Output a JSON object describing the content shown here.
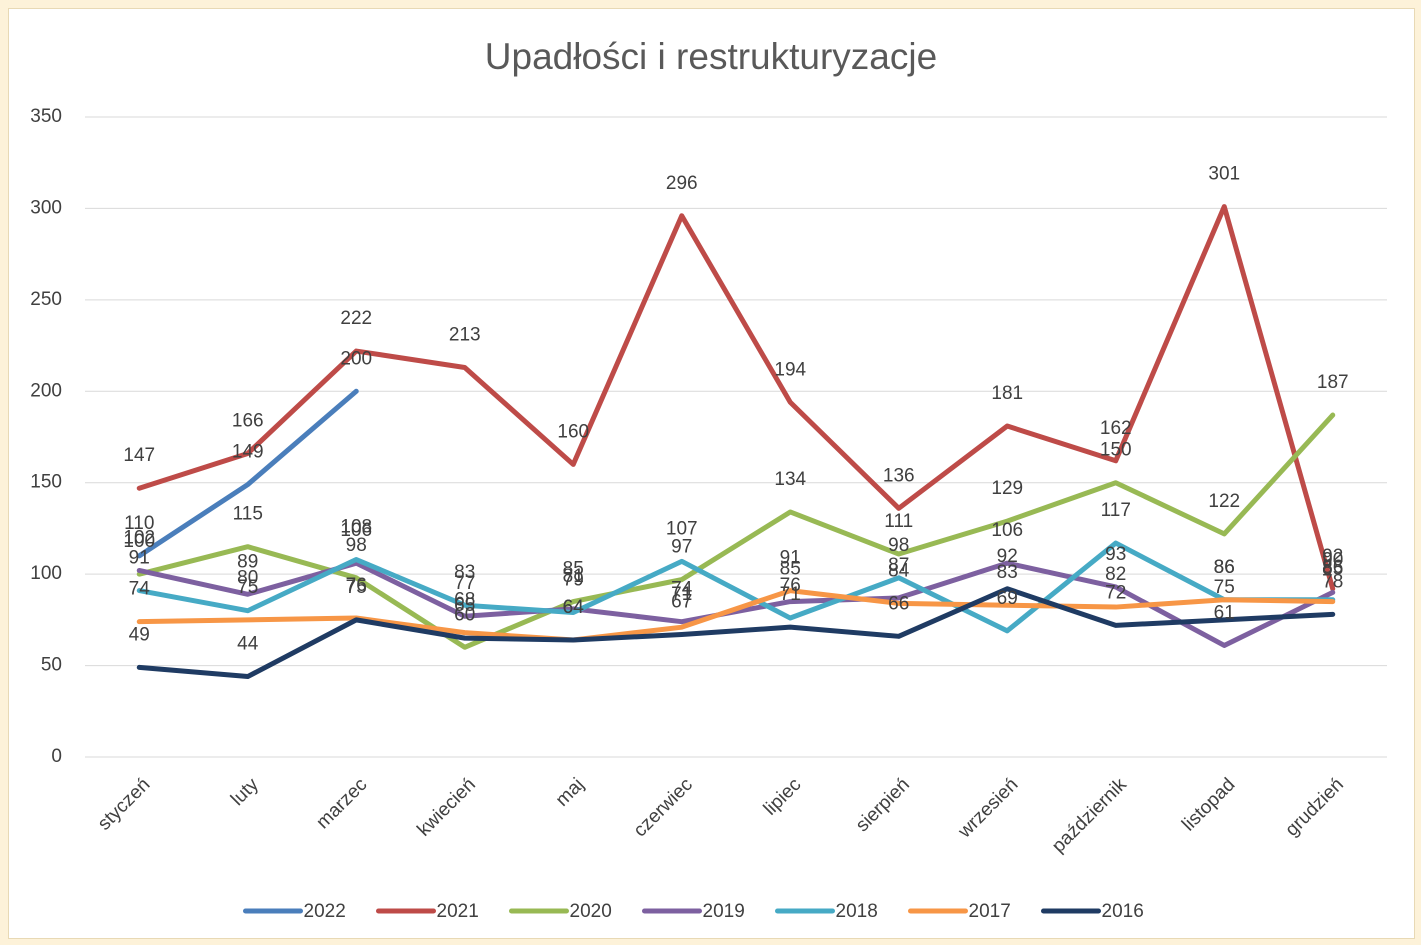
{
  "chart_data": {
    "type": "line",
    "title": "Upadłości i restrukturyzacje",
    "categories": [
      "styczeń",
      "luty",
      "marzec",
      "kwiecień",
      "maj",
      "czerwiec",
      "lipiec",
      "sierpień",
      "wrzesień",
      "październik",
      "listopad",
      "grudzień"
    ],
    "series": [
      {
        "name": "2022",
        "color": "#4a7ebb",
        "values": [
          110,
          149,
          200,
          null,
          null,
          null,
          null,
          null,
          null,
          null,
          null,
          null
        ]
      },
      {
        "name": "2021",
        "color": "#be4b48",
        "values": [
          147,
          166,
          222,
          213,
          160,
          296,
          194,
          136,
          181,
          162,
          301,
          92
        ]
      },
      {
        "name": "2020",
        "color": "#98b954",
        "values": [
          100,
          115,
          98,
          60,
          85,
          97,
          134,
          111,
          129,
          150,
          122,
          187
        ]
      },
      {
        "name": "2019",
        "color": "#7d60a0",
        "values": [
          102,
          89,
          106,
          77,
          81,
          74,
          85,
          87,
          106,
          93,
          61,
          90
        ]
      },
      {
        "name": "2018",
        "color": "#46aac5",
        "values": [
          91,
          80,
          108,
          83,
          79,
          107,
          76,
          98,
          69,
          117,
          86,
          86
        ]
      },
      {
        "name": "2017",
        "color": "#f79646",
        "values": [
          74,
          75,
          76,
          68,
          64,
          71,
          91,
          84,
          83,
          82,
          86,
          85
        ]
      },
      {
        "name": "2016",
        "color": "#1f3b63",
        "values": [
          49,
          44,
          75,
          65,
          64,
          67,
          71,
          66,
          92,
          72,
          75,
          78
        ]
      }
    ],
    "ylim": [
      0,
      350
    ],
    "yticks": [
      0,
      50,
      100,
      150,
      200,
      250,
      300,
      350
    ],
    "grid": true,
    "legend": "bottom"
  }
}
